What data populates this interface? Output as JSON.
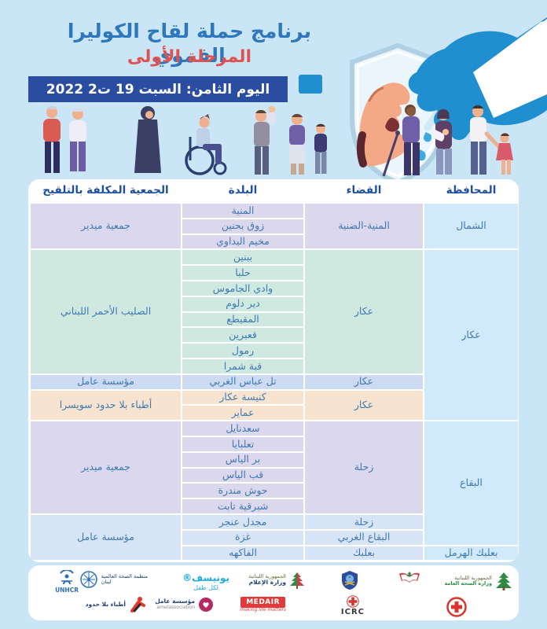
{
  "header": {
    "title": "برنامج حملة لقاح الكوليرا الفموي",
    "phase": "المرحلة الأولى",
    "date_line": "اليوم الثامن: السبت 19 ت2 2022"
  },
  "colors": {
    "lavender": "#dbd7ec",
    "mint": "#cfe9e1",
    "peri": "#ccdaf2",
    "cream": "#f7e4d0",
    "blue": "#d7e4f6",
    "sky": "#d0eafc",
    "banner": "#2b4da1",
    "accent_red": "#e1514f",
    "accent_blue": "#2e77bd"
  },
  "table": {
    "headers": [
      "المحافظة",
      "القضاء",
      "البلدة",
      "الجمعية المكلفة بالتلقيح"
    ],
    "towns": [
      {
        "label": "المنية",
        "color": "lavender"
      },
      {
        "label": "زوق بحنين",
        "color": "lavender"
      },
      {
        "label": "مخيم البداوي",
        "color": "lavender"
      },
      {
        "label": "ببنين",
        "color": "mint"
      },
      {
        "label": "حلبا",
        "color": "mint"
      },
      {
        "label": "وادي الجاموس",
        "color": "mint"
      },
      {
        "label": "دير دلوم",
        "color": "mint"
      },
      {
        "label": "المقيطع",
        "color": "mint"
      },
      {
        "label": "قعبرين",
        "color": "mint"
      },
      {
        "label": "رمول",
        "color": "mint"
      },
      {
        "label": "قبة شمرا",
        "color": "mint"
      },
      {
        "label": "تل عباس الغربي",
        "color": "peri"
      },
      {
        "label": "كنيسة عكار",
        "color": "cream"
      },
      {
        "label": "عماير",
        "color": "cream"
      },
      {
        "label": "سعدنايل",
        "color": "lavender"
      },
      {
        "label": "تعلبايا",
        "color": "lavender"
      },
      {
        "label": "بر الياس",
        "color": "lavender"
      },
      {
        "label": "قب الياس",
        "color": "lavender"
      },
      {
        "label": "حوش مندرة",
        "color": "lavender"
      },
      {
        "label": "شبرقية تابت",
        "color": "lavender"
      },
      {
        "label": "مجدل عنجر",
        "color": "blue"
      },
      {
        "label": "غزة",
        "color": "blue"
      },
      {
        "label": "الفاكهه",
        "color": "blue"
      }
    ],
    "districts": [
      {
        "label": "المنية-الضنية",
        "row": 1,
        "span": 3,
        "color": "lavender"
      },
      {
        "label": "عكار",
        "row": 4,
        "span": 8,
        "color": "mint"
      },
      {
        "label": "عكار",
        "row": 12,
        "span": 1,
        "color": "peri"
      },
      {
        "label": "عكار",
        "row": 13,
        "span": 2,
        "color": "cream"
      },
      {
        "label": "زحلة",
        "row": 15,
        "span": 6,
        "color": "lavender"
      },
      {
        "label": "زحلة",
        "row": 21,
        "span": 1,
        "color": "blue"
      },
      {
        "label": "البقاع الغربي",
        "row": 22,
        "span": 1,
        "color": "blue"
      },
      {
        "label": "بعلبك",
        "row": 23,
        "span": 1,
        "color": "blue"
      }
    ],
    "orgs": [
      {
        "label": "جمعية ميدير",
        "row": 1,
        "span": 3,
        "color": "lavender"
      },
      {
        "label": "الصليب الأحمر اللبناني",
        "row": 4,
        "span": 8,
        "color": "mint"
      },
      {
        "label": "مؤسسة عامل",
        "row": 12,
        "span": 1,
        "color": "peri"
      },
      {
        "label": "أطباء بلا حدود سويسرا",
        "row": 13,
        "span": 2,
        "color": "cream"
      },
      {
        "label": "جمعية ميدير",
        "row": 15,
        "span": 6,
        "color": "lavender"
      },
      {
        "label": "مؤسسة عامل",
        "row": 21,
        "span": 3,
        "color": "blue"
      }
    ],
    "governorates": [
      {
        "label": "الشمال",
        "row": 1,
        "span": 3,
        "color": "sky"
      },
      {
        "label": "عكار",
        "row": 4,
        "span": 11,
        "color": "sky"
      },
      {
        "label": "البقاع",
        "row": 15,
        "span": 8,
        "color": "sky"
      },
      {
        "label": "بعلبك الهرمل",
        "row": 23,
        "span": 1,
        "color": "sky"
      }
    ]
  },
  "footer": {
    "moph_line1": "الجمهورية اللبنانية",
    "moph_line2": "وزارة الصحة العامة",
    "moi_line1": "الجمهورية اللبنانية",
    "moi_line2": "وزارة الإعلام",
    "unicef_name": "يونيسف®",
    "unicef_sub": "لكل طفل",
    "who_line1": "منظمة الصحة العالمية",
    "who_line2": "لبنان",
    "unhcr_label": "UNHCR",
    "msf_label": "أطباء بلا حدود",
    "amel_line1": "مؤسسة عامل",
    "amel_line2": "amelassociation",
    "medair_label": "MEDAIR",
    "medair_tagline": "making life matters",
    "icrc_label": "ICRC"
  }
}
